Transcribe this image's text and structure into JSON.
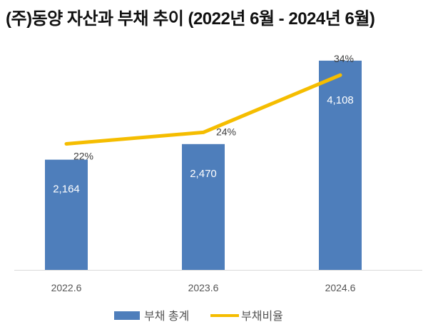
{
  "chart_data": {
    "type": "bar+line",
    "title": "(주)동양 자산과 부채 추이 (2022년 6월 - 2024년 6월)",
    "categories": [
      "2022.6",
      "2023.6",
      "2024.6"
    ],
    "series": [
      {
        "name": "부채 총계",
        "type": "bar",
        "values": [
          2164,
          2470,
          4108
        ],
        "labels": [
          "2,164",
          "2,470",
          "4,108"
        ],
        "color": "#4E7EBB"
      },
      {
        "name": "부채비율",
        "type": "line",
        "values": [
          22,
          24,
          34
        ],
        "labels": [
          "22%",
          "24%",
          "34%"
        ],
        "color": "#F5BD00",
        "axis": "secondary"
      }
    ],
    "ylim": [
      0,
      4500
    ],
    "y2lim": [
      0,
      40
    ],
    "grid": false,
    "legend": "bottom",
    "axis_line_color": "#D9D9D9"
  }
}
